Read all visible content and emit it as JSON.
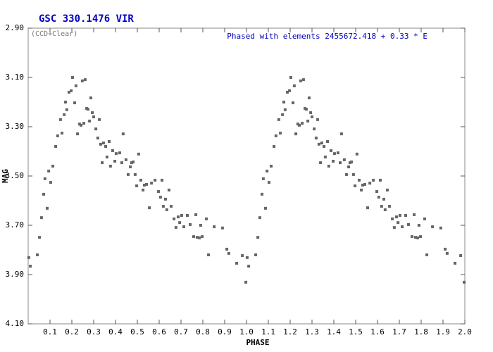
{
  "chart_data": {
    "type": "scatter",
    "title": "GSC 330.1476 VIR",
    "subtitle": "(CCD+Clear)",
    "annotation": "Phased with elements 2455672.418 + 0.33 * E",
    "x_label": "PHASE",
    "y_label": "MAG",
    "color": "#666666",
    "xlim": [
      0,
      2
    ],
    "ylim": [
      4.1,
      2.9
    ],
    "xticks": [
      0.1,
      0.2,
      0.3,
      0.4,
      0.5,
      0.6,
      0.7,
      0.8,
      0.9,
      {
        "value": 1,
        "label": "1.0"
      },
      1.1,
      1.2,
      1.3,
      1.4,
      1.5,
      1.6,
      1.7,
      1.8,
      1.9,
      {
        "value": 2,
        "label": "2.0"
      }
    ],
    "yticks": [
      {
        "value": 2.9,
        "label": "2.90"
      },
      {
        "value": 3.1,
        "label": "3.10"
      },
      {
        "value": 3.3,
        "label": "3.30"
      },
      {
        "value": 3.5,
        "label": "3.50"
      },
      {
        "value": 3.7,
        "label": "3.70"
      },
      {
        "value": 3.9,
        "label": "3.90"
      },
      {
        "value": 4.1,
        "label": "4.10"
      }
    ],
    "x": [
      0.003,
      0.01,
      0.042,
      0.052,
      0.061,
      0.071,
      0.077,
      0.087,
      0.094,
      0.103,
      0.113,
      0.126,
      0.135,
      0.148,
      0.155,
      0.165,
      0.171,
      0.177,
      0.187,
      0.197,
      0.203,
      0.213,
      0.219,
      0.226,
      0.235,
      0.242,
      0.248,
      0.255,
      0.261,
      0.268,
      0.274,
      0.281,
      0.287,
      0.294,
      0.3,
      0.31,
      0.319,
      0.326,
      0.332,
      0.339,
      0.345,
      0.355,
      0.361,
      0.371,
      0.377,
      0.387,
      0.397,
      0.403,
      0.419,
      0.429,
      0.435,
      0.448,
      0.458,
      0.468,
      0.474,
      0.481,
      0.49,
      0.497,
      0.506,
      0.516,
      0.526,
      0.532,
      0.542,
      0.555,
      0.565,
      0.581,
      0.597,
      0.606,
      0.613,
      0.619,
      0.629,
      0.635,
      0.645,
      0.655,
      0.668,
      0.677,
      0.687,
      0.694,
      0.703,
      0.713,
      0.729,
      0.742,
      0.758,
      0.768,
      0.774,
      0.784,
      0.79,
      0.797,
      0.816,
      0.826,
      0.852,
      0.89,
      0.91,
      0.919,
      0.955,
      0.981,
      0.997,
      1.003,
      1.01,
      1.042,
      1.052,
      1.061,
      1.071,
      1.077,
      1.087,
      1.094,
      1.103,
      1.113,
      1.126,
      1.135,
      1.148,
      1.155,
      1.165,
      1.171,
      1.177,
      1.187,
      1.197,
      1.203,
      1.213,
      1.219,
      1.226,
      1.235,
      1.242,
      1.248,
      1.255,
      1.261,
      1.268,
      1.274,
      1.281,
      1.287,
      1.294,
      1.3,
      1.31,
      1.319,
      1.326,
      1.332,
      1.339,
      1.345,
      1.355,
      1.361,
      1.371,
      1.377,
      1.387,
      1.397,
      1.403,
      1.419,
      1.429,
      1.435,
      1.448,
      1.458,
      1.468,
      1.474,
      1.481,
      1.49,
      1.497,
      1.506,
      1.516,
      1.526,
      1.532,
      1.542,
      1.555,
      1.565,
      1.581,
      1.597,
      1.606,
      1.613,
      1.619,
      1.629,
      1.635,
      1.645,
      1.655,
      1.668,
      1.677,
      1.687,
      1.694,
      1.703,
      1.713,
      1.729,
      1.742,
      1.758,
      1.768,
      1.774,
      1.784,
      1.79,
      1.797,
      1.816,
      1.826,
      1.852,
      1.89,
      1.91,
      1.919,
      1.955,
      1.981,
      1.997
    ],
    "values": [
      3.831,
      3.866,
      3.82,
      3.749,
      3.669,
      3.574,
      3.511,
      3.631,
      3.48,
      3.526,
      3.46,
      3.38,
      3.337,
      3.271,
      3.326,
      3.251,
      3.2,
      3.231,
      3.16,
      3.154,
      3.1,
      3.203,
      3.134,
      3.329,
      3.289,
      3.294,
      3.114,
      3.286,
      3.109,
      3.226,
      3.229,
      3.277,
      3.183,
      3.243,
      3.26,
      3.309,
      3.346,
      3.271,
      3.371,
      3.446,
      3.366,
      3.38,
      3.423,
      3.36,
      3.46,
      3.397,
      3.44,
      3.409,
      3.406,
      3.446,
      3.329,
      3.434,
      3.494,
      3.463,
      3.446,
      3.443,
      3.494,
      3.54,
      3.411,
      3.517,
      3.557,
      3.537,
      3.534,
      3.629,
      3.529,
      3.517,
      3.563,
      3.586,
      3.517,
      3.623,
      3.594,
      3.637,
      3.557,
      3.623,
      3.674,
      3.709,
      3.666,
      3.689,
      3.66,
      3.706,
      3.66,
      3.697,
      3.746,
      3.657,
      3.749,
      3.751,
      3.7,
      3.746,
      3.674,
      3.82,
      3.706,
      3.711,
      3.797,
      3.814,
      3.854,
      3.823,
      3.931,
      3.831,
      3.866,
      3.82,
      3.749,
      3.669,
      3.574,
      3.511,
      3.631,
      3.48,
      3.526,
      3.46,
      3.38,
      3.337,
      3.271,
      3.326,
      3.251,
      3.2,
      3.231,
      3.16,
      3.154,
      3.1,
      3.203,
      3.134,
      3.329,
      3.289,
      3.294,
      3.114,
      3.286,
      3.109,
      3.226,
      3.229,
      3.277,
      3.183,
      3.243,
      3.26,
      3.309,
      3.346,
      3.271,
      3.371,
      3.446,
      3.366,
      3.38,
      3.423,
      3.36,
      3.46,
      3.397,
      3.44,
      3.409,
      3.406,
      3.446,
      3.329,
      3.434,
      3.494,
      3.463,
      3.446,
      3.443,
      3.494,
      3.54,
      3.411,
      3.517,
      3.557,
      3.537,
      3.534,
      3.629,
      3.529,
      3.517,
      3.563,
      3.586,
      3.517,
      3.623,
      3.594,
      3.637,
      3.557,
      3.623,
      3.674,
      3.709,
      3.666,
      3.689,
      3.66,
      3.706,
      3.66,
      3.697,
      3.746,
      3.657,
      3.749,
      3.751,
      3.7,
      3.746,
      3.674,
      3.82,
      3.706,
      3.711,
      3.797,
      3.814,
      3.854,
      3.823,
      3.931
    ]
  }
}
